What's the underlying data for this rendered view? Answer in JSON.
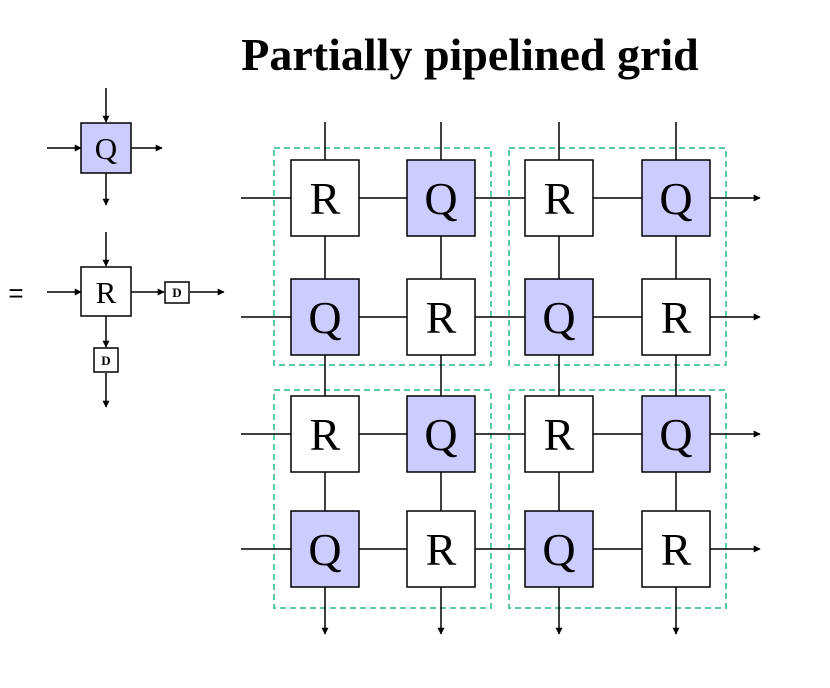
{
  "title": "Partially pipelined grid",
  "legend": {
    "top_cell": "Q",
    "equals": "=",
    "bottom_cell": "R",
    "delay_right": "D",
    "delay_down": "D"
  },
  "grid": [
    [
      "R",
      "Q",
      "R",
      "Q"
    ],
    [
      "Q",
      "R",
      "Q",
      "R"
    ],
    [
      "R",
      "Q",
      "R",
      "Q"
    ],
    [
      "Q",
      "R",
      "Q",
      "R"
    ]
  ],
  "colors": {
    "Q_fill": "#ccccff",
    "R_fill": "#ffffff",
    "group_border": "#5cc9a7",
    "line": "#000000"
  }
}
